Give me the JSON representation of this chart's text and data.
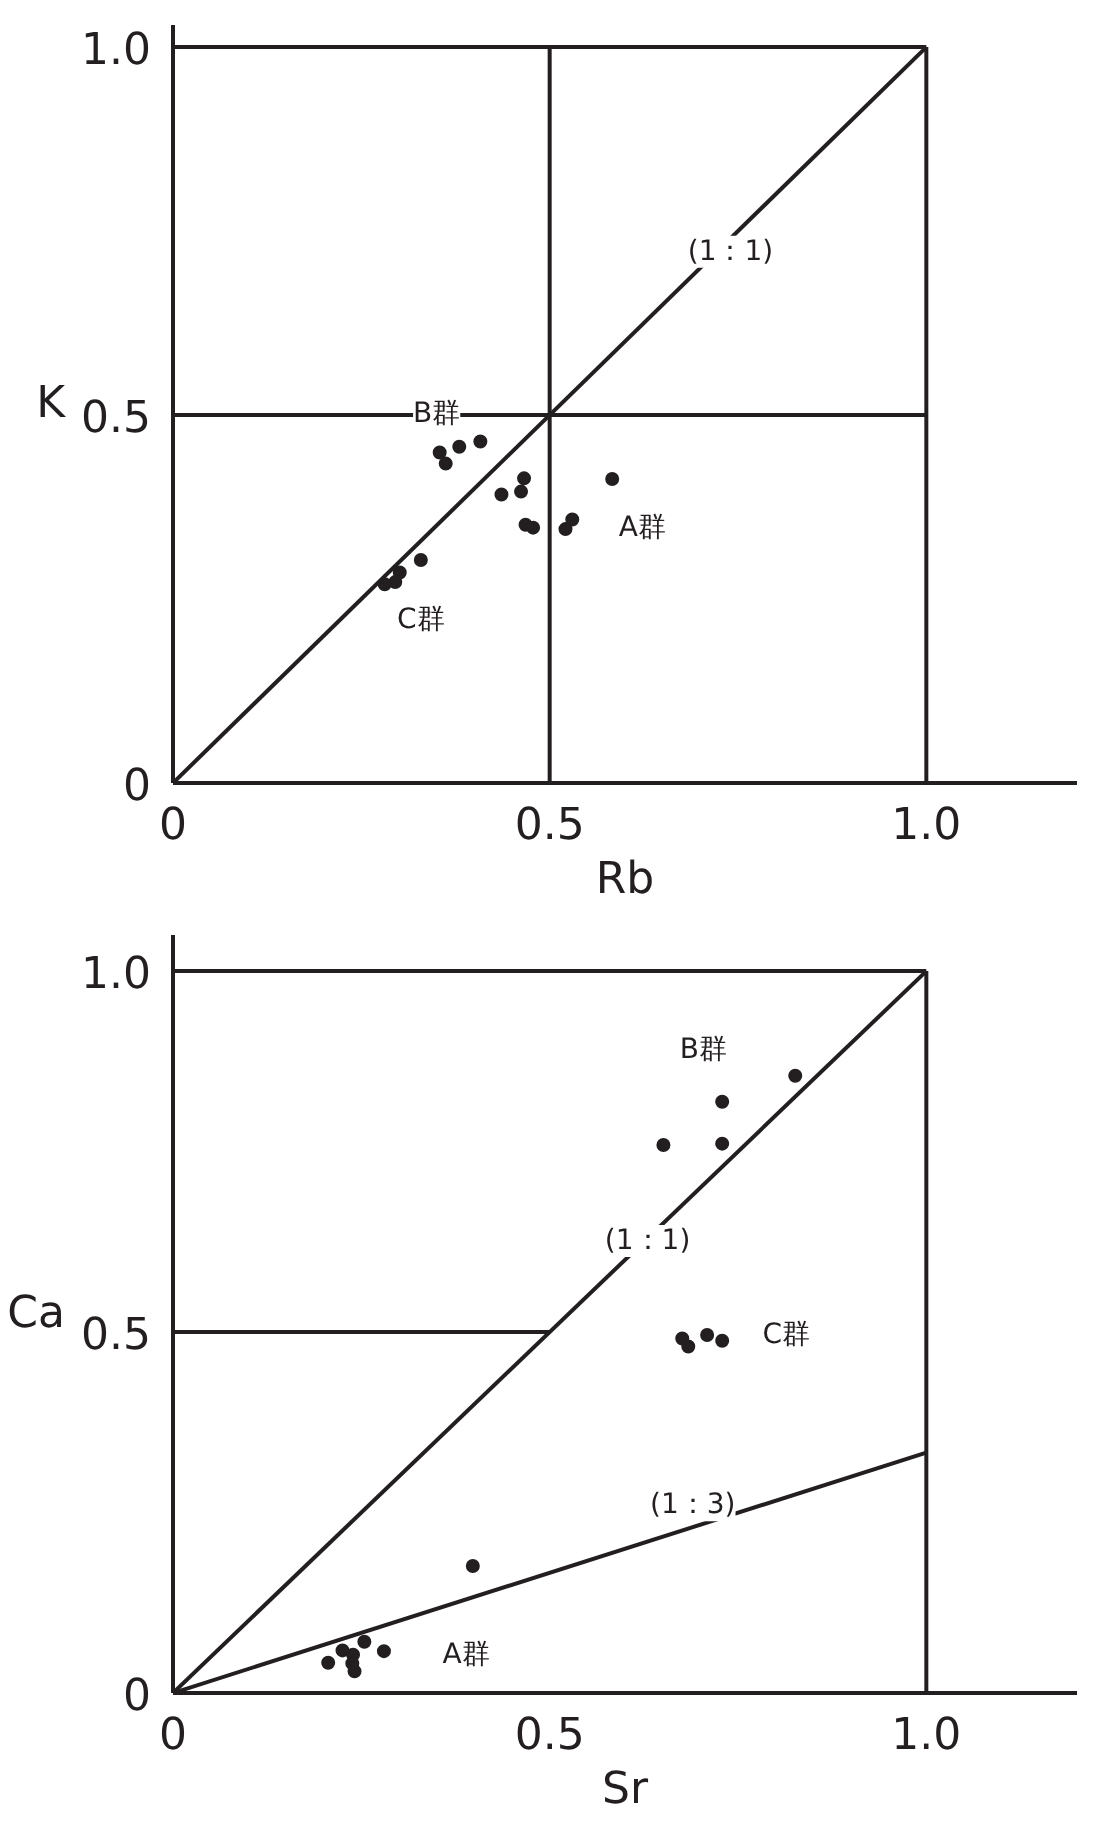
{
  "chart_data": [
    {
      "type": "scatter",
      "xlabel": "Rb",
      "ylabel": "K",
      "xlim": [
        0,
        1.2
      ],
      "ylim": [
        0,
        1.03
      ],
      "xticks": [
        0,
        0.5,
        {
          "value": 1,
          "label": "1.0"
        }
      ],
      "yticks": [
        0,
        0.5,
        {
          "value": 1,
          "label": "1.0"
        }
      ],
      "grid": false,
      "marker": "circle",
      "series": [
        {
          "color": "#231f20",
          "x": [
            0.354,
            0.38,
            0.408,
            0.362
          ],
          "values": [
            0.449,
            0.457,
            0.464,
            0.434
          ]
        },
        {
          "color": "#231f20",
          "x": [
            0.466,
            0.436,
            0.462,
            0.468,
            0.478,
            0.521,
            0.53,
            0.583
          ],
          "values": [
            0.414,
            0.392,
            0.396,
            0.351,
            0.347,
            0.345,
            0.358,
            0.413
          ]
        },
        {
          "color": "#231f20",
          "x": [
            0.329,
            0.301,
            0.295,
            0.281
          ],
          "values": [
            0.303,
            0.286,
            0.273,
            0.27
          ]
        },
        {
          "type": "line",
          "marker": "none",
          "color": "#231f20",
          "x": [
            0,
            1
          ],
          "values": [
            0,
            1
          ]
        },
        {
          "type": "line",
          "marker": "none",
          "color": "#231f20",
          "x": [
            0.5,
            0.5
          ],
          "values": [
            0,
            1
          ]
        },
        {
          "type": "line",
          "marker": "none",
          "color": "#231f20",
          "x": [
            1,
            1
          ],
          "values": [
            0,
            1
          ]
        },
        {
          "type": "line",
          "marker": "none",
          "color": "#231f20",
          "x": [
            0,
            1
          ],
          "values": [
            0.5,
            0.5
          ]
        },
        {
          "type": "line",
          "marker": "none",
          "color": "#231f20",
          "x": [
            0,
            1
          ],
          "values": [
            1,
            1
          ]
        }
      ],
      "annotations": [
        {
          "text": "B群",
          "x": 0.35,
          "y": 0.501
        },
        {
          "text": "A群",
          "x": 0.623,
          "y": 0.347
        },
        {
          "text": "C群",
          "x": 0.329,
          "y": 0.221
        },
        {
          "text": "(1：1)",
          "x": 0.74,
          "y": 0.722
        }
      ]
    },
    {
      "type": "scatter",
      "xlabel": "Sr",
      "ylabel": "Ca",
      "xlim": [
        0,
        1.2
      ],
      "ylim": [
        0,
        1.05
      ],
      "xticks": [
        0,
        0.5,
        {
          "value": 1,
          "label": "1.0"
        }
      ],
      "yticks": [
        0,
        0.5,
        {
          "value": 1,
          "label": "1.0"
        }
      ],
      "grid": false,
      "marker": "circle",
      "series": [
        {
          "color": "#231f20",
          "x": [
            0.826,
            0.729,
            0.651,
            0.729
          ],
          "values": [
            0.855,
            0.819,
            0.759,
            0.761
          ]
        },
        {
          "color": "#231f20",
          "x": [
            0.676,
            0.684,
            0.709,
            0.729
          ],
          "values": [
            0.491,
            0.48,
            0.496,
            0.488
          ]
        },
        {
          "color": "#231f20",
          "x": [
            0.398,
            0.206,
            0.225,
            0.239,
            0.254,
            0.238,
            0.241,
            0.28
          ],
          "values": [
            0.176,
            0.042,
            0.059,
            0.053,
            0.071,
            0.041,
            0.03,
            0.058
          ]
        },
        {
          "type": "line",
          "marker": "none",
          "color": "#231f20",
          "x": [
            0,
            1
          ],
          "values": [
            0,
            1
          ]
        },
        {
          "type": "line",
          "marker": "none",
          "color": "#231f20",
          "x": [
            0,
            1
          ],
          "values": [
            0,
            0.333
          ]
        },
        {
          "type": "line",
          "marker": "none",
          "color": "#231f20",
          "x": [
            0,
            0.5
          ],
          "values": [
            0.5,
            0.5
          ]
        },
        {
          "type": "line",
          "marker": "none",
          "color": "#231f20",
          "x": [
            1,
            1
          ],
          "values": [
            0,
            1
          ]
        },
        {
          "type": "line",
          "marker": "none",
          "color": "#231f20",
          "x": [
            0,
            1
          ],
          "values": [
            1,
            1
          ]
        }
      ],
      "annotations": [
        {
          "text": "B群",
          "x": 0.704,
          "y": 0.891
        },
        {
          "text": "C群",
          "x": 0.814,
          "y": 0.496
        },
        {
          "text": "A群",
          "x": 0.389,
          "y": 0.052
        },
        {
          "text": "(1：1)",
          "x": 0.63,
          "y": 0.626
        },
        {
          "text": "(1：3)",
          "x": 0.69,
          "y": 0.26
        }
      ]
    }
  ]
}
